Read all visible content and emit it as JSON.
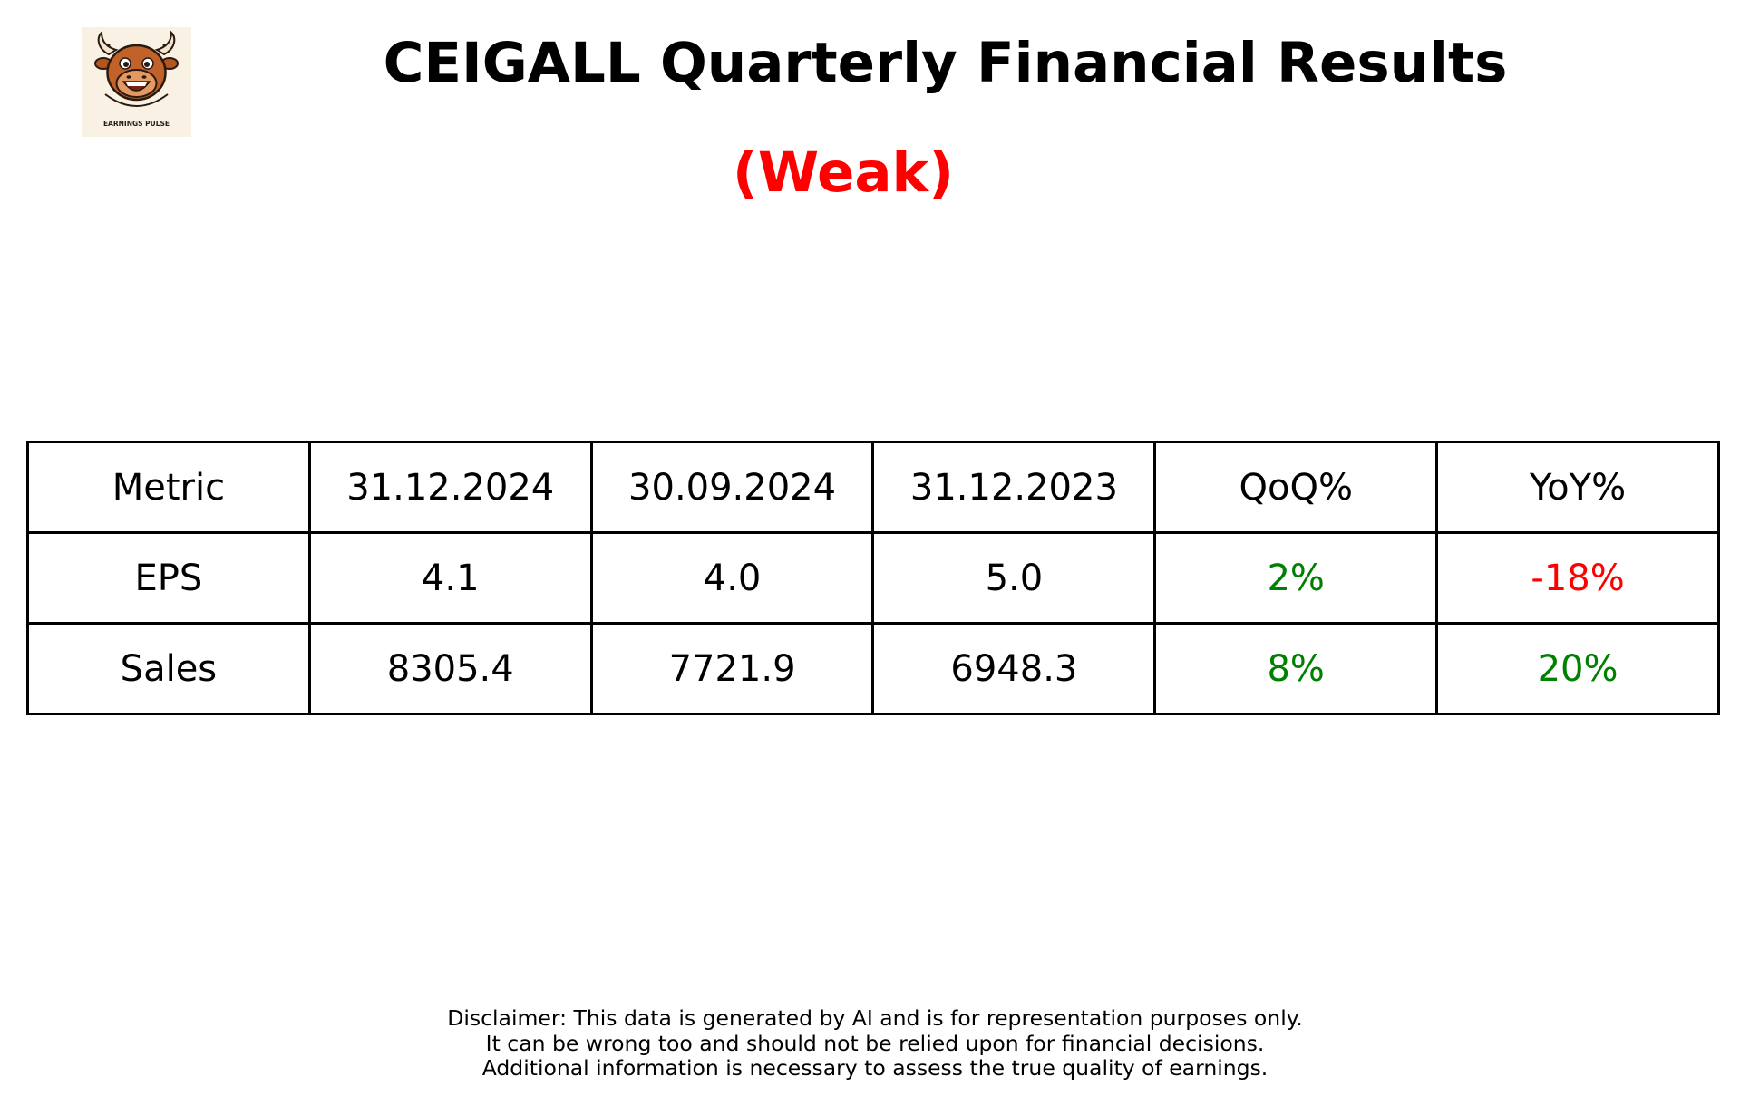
{
  "header": {
    "title": "CEIGALL Quarterly Financial Results",
    "rating": "(Weak)",
    "rating_color": "#ff0000",
    "logo_icon": "bull-mascot-icon",
    "logo_text": "EARNINGS PULSE"
  },
  "chart_data": {
    "type": "table",
    "columns": [
      "Metric",
      "31.12.2024",
      "30.09.2024",
      "31.12.2023",
      "QoQ%",
      "YoY%"
    ],
    "rows": [
      {
        "metric": "EPS",
        "q_dec_2024": "4.1",
        "q_sep_2024": "4.0",
        "q_dec_2023": "5.0",
        "qoq": "2%",
        "yoy": "-18%"
      },
      {
        "metric": "Sales",
        "q_dec_2024": "8305.4",
        "q_sep_2024": "7721.9",
        "q_dec_2023": "6948.3",
        "qoq": "8%",
        "yoy": "20%"
      }
    ],
    "colors": {
      "positive": "#008000",
      "negative": "#ff0000",
      "default": "#000000"
    }
  },
  "disclaimer": {
    "line1": "Disclaimer: This data is generated by AI and is for representation purposes only.",
    "line2": "It can be wrong too and should not be relied upon for financial decisions.",
    "line3": "Additional information is necessary to assess the true quality of earnings."
  }
}
